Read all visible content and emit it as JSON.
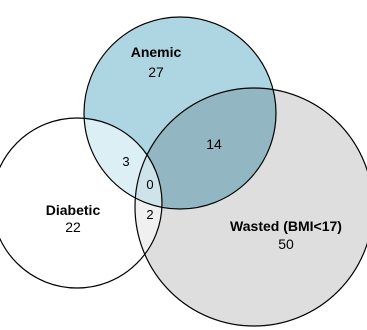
{
  "sets": [
    {
      "id": "anemic",
      "label": "Anemic",
      "count": "27",
      "fill": "#aed6e2"
    },
    {
      "id": "diabetic",
      "label": "Diabetic",
      "count": "22",
      "fill": "#ffffff"
    },
    {
      "id": "wasted",
      "label": "Wasted (BMI<17)",
      "count": "50",
      "fill": "#dedede"
    }
  ],
  "intersections": {
    "anemic_wasted": "14",
    "anemic_diabetic": "3",
    "diabetic_wasted": "2",
    "all_three": "0"
  },
  "colors": {
    "anemic_only": "#aed6e2",
    "wasted_only": "#dedede",
    "anemic_wasted": "#93b7c2",
    "anemic_diabetic": "#dbeff5",
    "diabetic_wasted": "#f0f0f0",
    "all_three": "#cfe4ea",
    "outline": "#000000"
  }
}
